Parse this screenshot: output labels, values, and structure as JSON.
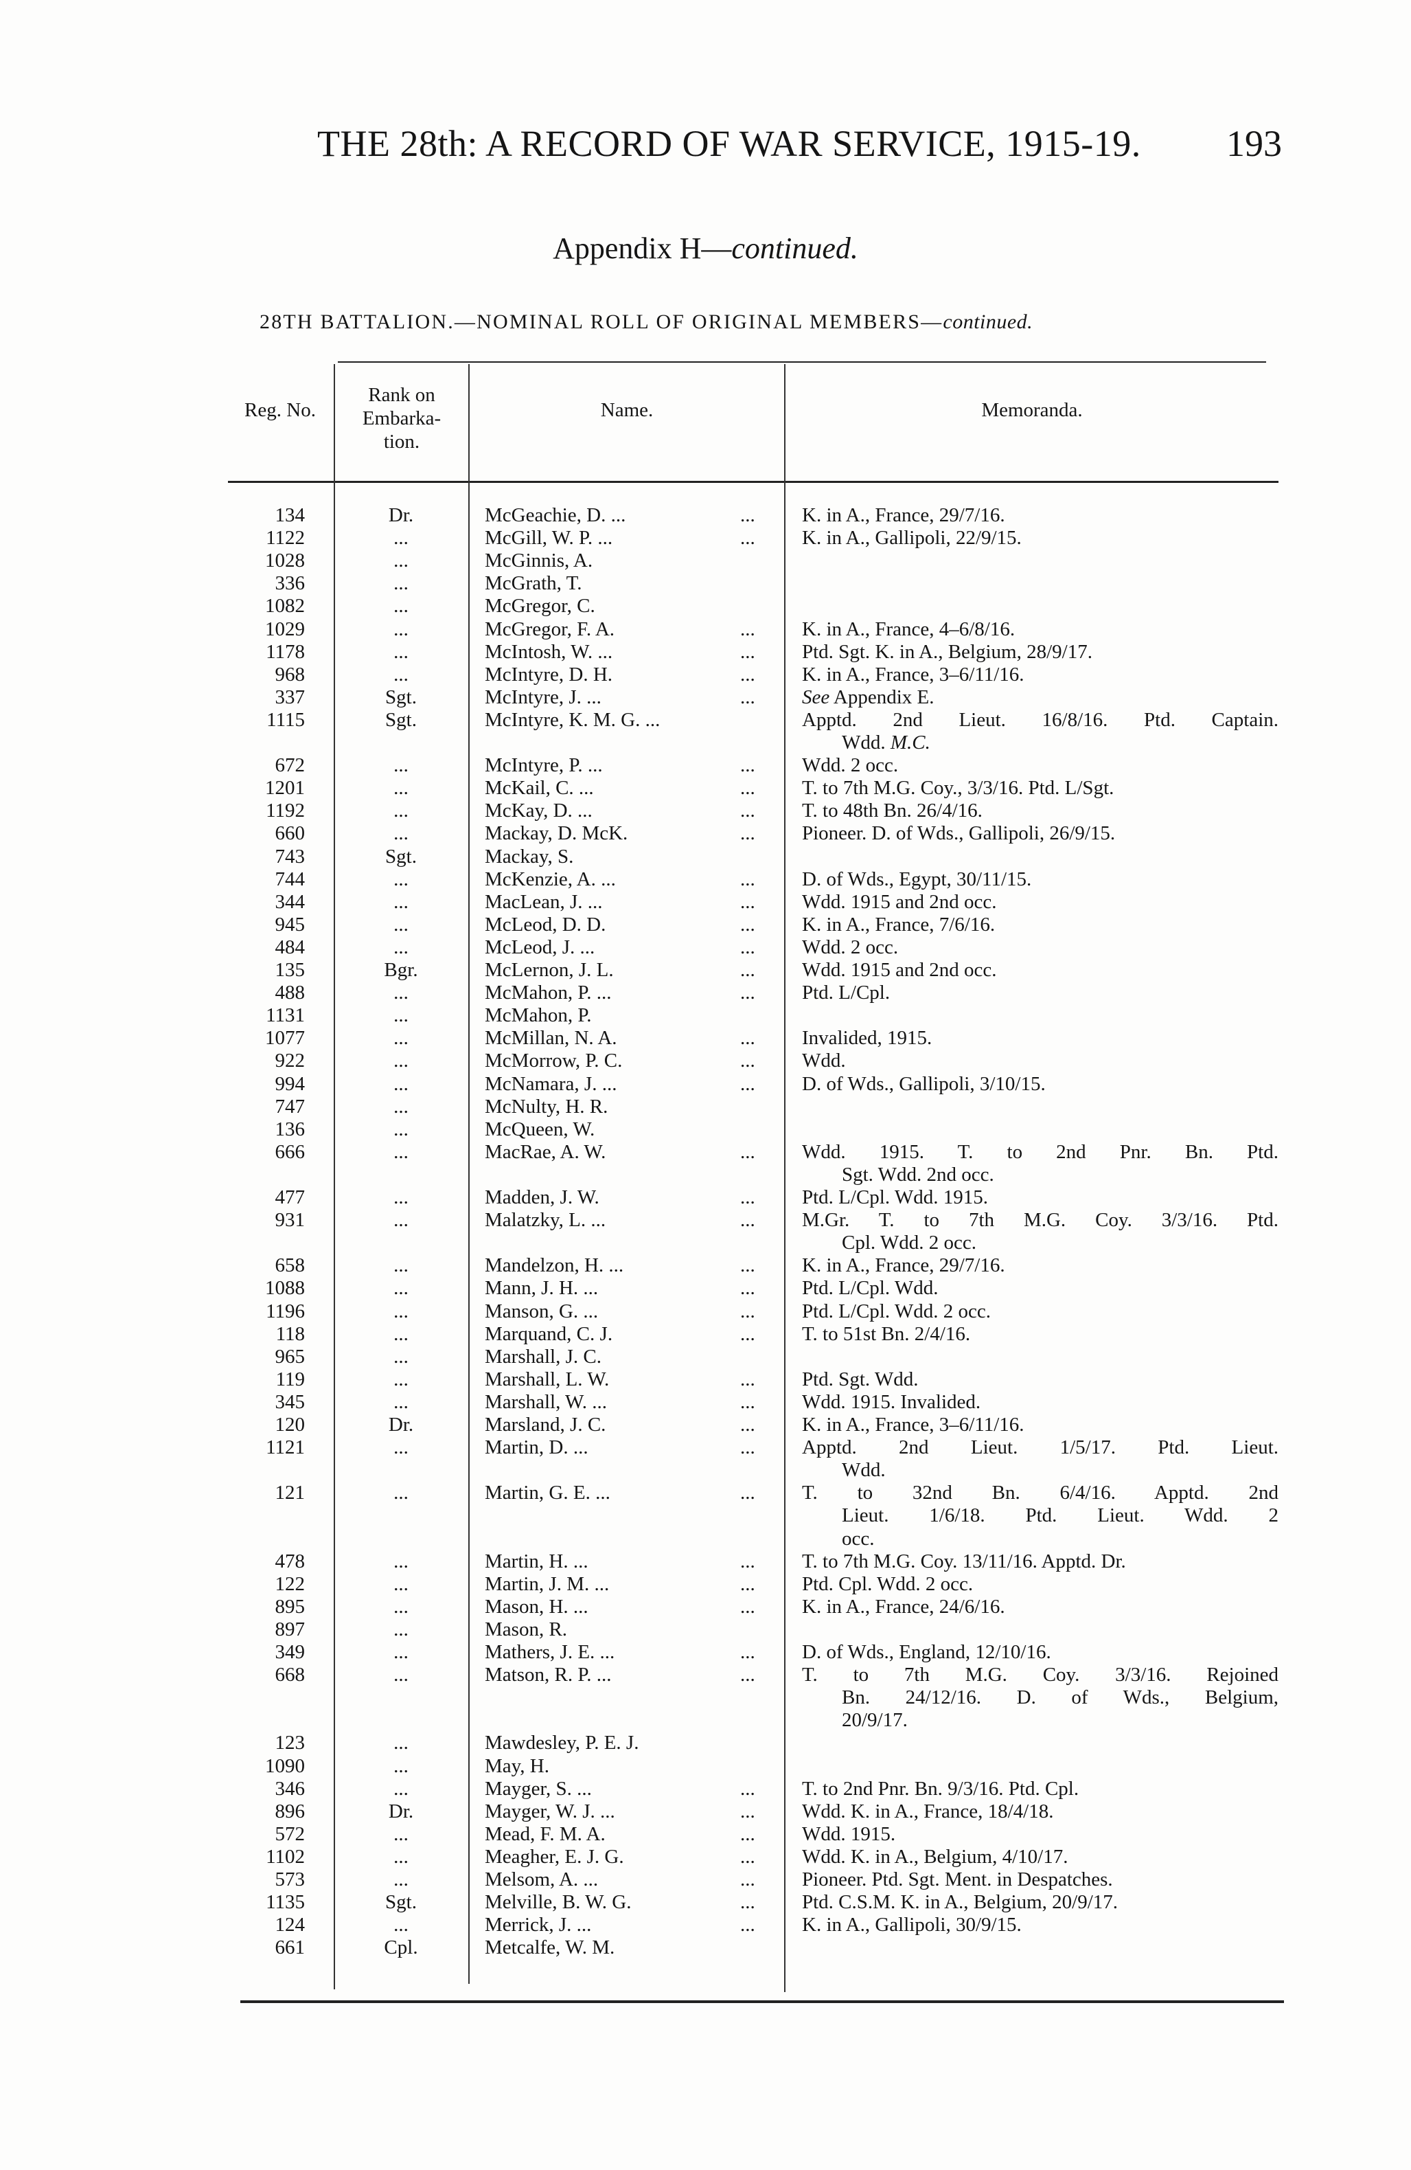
{
  "header": {
    "running_title": "THE 28th: A RECORD OF WAR SERVICE, 1915-19.",
    "page_number": "193"
  },
  "appendix_title": {
    "main": "Appendix H—",
    "italic": "continued."
  },
  "roll_title": {
    "main": "28TH BATTALION.—NOMINAL ROLL OF ORIGINAL MEMBERS—",
    "italic": "continued."
  },
  "table": {
    "columns": {
      "reg_no": "Reg. No.",
      "rank": [
        "Rank on",
        "Embarka-",
        "tion."
      ],
      "name": "Name.",
      "memoranda": "Memoranda."
    },
    "rows": [
      {
        "reg": "134",
        "rank": "Dr.",
        "name": "McGeachie, D. ...",
        "leader": "...",
        "memo": [
          "K. in A., France, 29/7/16."
        ]
      },
      {
        "reg": "1122",
        "rank": "...",
        "name": "McGill, W. P. ...",
        "leader": "...",
        "memo": [
          "K. in A., Gallipoli, 22/9/15."
        ]
      },
      {
        "reg": "1028",
        "rank": "...",
        "name": "McGinnis, A.",
        "leader": "",
        "memo": []
      },
      {
        "reg": "336",
        "rank": "...",
        "name": "McGrath, T.",
        "leader": "",
        "memo": []
      },
      {
        "reg": "1082",
        "rank": "...",
        "name": "McGregor, C.",
        "leader": "",
        "memo": []
      },
      {
        "reg": "1029",
        "rank": "...",
        "name": "McGregor, F. A.",
        "leader": "...",
        "memo": [
          "K. in A., France, 4–6/8/16."
        ]
      },
      {
        "reg": "1178",
        "rank": "...",
        "name": "McIntosh, W. ...",
        "leader": "...",
        "memo": [
          "Ptd. Sgt.  K. in A., Belgium, 28/9/17."
        ]
      },
      {
        "reg": "968",
        "rank": "...",
        "name": "McIntyre, D. H.",
        "leader": "...",
        "memo": [
          "K. in A., France, 3–6/11/16."
        ]
      },
      {
        "reg": "337",
        "rank": "Sgt.",
        "name": "McIntyre, J.  ...",
        "leader": "...",
        "memo": [
          [
            {
              "t": "See",
              "i": true
            },
            {
              "t": " Appendix E."
            }
          ]
        ]
      },
      {
        "reg": "1115",
        "rank": "Sgt.",
        "name": "McIntyre, K. M. G. ...",
        "leader": "",
        "memo": [
          "Apptd. 2nd Lieut. 16/8/16.  Ptd. Captain.",
          [
            {
              "t": "Wdd.  "
            },
            {
              "t": "M.C.",
              "i": true
            }
          ]
        ]
      },
      {
        "reg": "672",
        "rank": "...",
        "name": "McIntyre, P.  ...",
        "leader": "...",
        "memo": [
          "Wdd. 2 occ."
        ]
      },
      {
        "reg": "1201",
        "rank": "...",
        "name": "McKail, C.  ...",
        "leader": "...",
        "memo": [
          "T. to 7th M.G. Coy., 3/3/16.  Ptd. L/Sgt."
        ]
      },
      {
        "reg": "1192",
        "rank": "...",
        "name": "McKay, D.  ...",
        "leader": "...",
        "memo": [
          "T. to 48th Bn. 26/4/16."
        ]
      },
      {
        "reg": "660",
        "rank": "...",
        "name": "Mackay, D. McK.",
        "leader": "...",
        "memo": [
          "Pioneer.  D. of Wds., Gallipoli, 26/9/15."
        ]
      },
      {
        "reg": "743",
        "rank": "Sgt.",
        "name": "Mackay, S.",
        "leader": "",
        "memo": []
      },
      {
        "reg": "744",
        "rank": "...",
        "name": "McKenzie, A.  ...",
        "leader": "...",
        "memo": [
          "D. of Wds., Egypt, 30/11/15."
        ]
      },
      {
        "reg": "344",
        "rank": "...",
        "name": "MacLean, J.  ...",
        "leader": "...",
        "memo": [
          "Wdd. 1915 and 2nd occ."
        ]
      },
      {
        "reg": "945",
        "rank": "...",
        "name": "McLeod, D. D.",
        "leader": "...",
        "memo": [
          "K. in A., France, 7/6/16."
        ]
      },
      {
        "reg": "484",
        "rank": "...",
        "name": "McLeod, J.  ...",
        "leader": "...",
        "memo": [
          "Wdd. 2 occ."
        ]
      },
      {
        "reg": "135",
        "rank": "Bgr.",
        "name": "McLernon, J. L.",
        "leader": "...",
        "memo": [
          "Wdd. 1915 and 2nd occ."
        ]
      },
      {
        "reg": "488",
        "rank": "...",
        "name": "McMahon, P.  ...",
        "leader": "...",
        "memo": [
          "Ptd. L/Cpl."
        ]
      },
      {
        "reg": "1131",
        "rank": "...",
        "name": "McMahon, P.",
        "leader": "",
        "memo": []
      },
      {
        "reg": "1077",
        "rank": "...",
        "name": "McMillan, N. A.",
        "leader": "...",
        "memo": [
          "Invalided, 1915."
        ]
      },
      {
        "reg": "922",
        "rank": "...",
        "name": "McMorrow, P. C.",
        "leader": "...",
        "memo": [
          "Wdd."
        ]
      },
      {
        "reg": "994",
        "rank": "...",
        "name": "McNamara, J. ...",
        "leader": "...",
        "memo": [
          "D. of Wds., Gallipoli, 3/10/15."
        ]
      },
      {
        "reg": "747",
        "rank": "...",
        "name": "McNulty, H. R.",
        "leader": "",
        "memo": []
      },
      {
        "reg": "136",
        "rank": "...",
        "name": "McQueen,  W.",
        "leader": "",
        "memo": []
      },
      {
        "reg": "666",
        "rank": "...",
        "name": "MacRae, A. W.",
        "leader": "...",
        "memo": [
          "Wdd. 1915. T. to 2nd Pnr. Bn. Ptd.",
          "Sgt.  Wdd. 2nd occ."
        ]
      },
      {
        "reg": "477",
        "rank": "...",
        "name": "Madden, J. W.",
        "leader": "...",
        "memo": [
          "Ptd.  L/Cpl.  Wdd. 1915."
        ]
      },
      {
        "reg": "931",
        "rank": "...",
        "name": "Malatzky, L.  ...",
        "leader": "...",
        "memo": [
          "M.Gr. T. to 7th M.G. Coy. 3/3/16. Ptd.",
          "Cpl.  Wdd. 2 occ."
        ]
      },
      {
        "reg": "658",
        "rank": "...",
        "name": "Mandelzon, H. ...",
        "leader": "...",
        "memo": [
          "K. in A., France, 29/7/16."
        ]
      },
      {
        "reg": "1088",
        "rank": "...",
        "name": "Mann, J. H.  ...",
        "leader": "...",
        "memo": [
          "Ptd. L/Cpl.  Wdd."
        ]
      },
      {
        "reg": "1196",
        "rank": "...",
        "name": "Manson, G.  ...",
        "leader": "...",
        "memo": [
          "Ptd. L/Cpl.  Wdd. 2 occ."
        ]
      },
      {
        "reg": "118",
        "rank": "...",
        "name": "Marquand, C. J.",
        "leader": "...",
        "memo": [
          "T. to 51st Bn. 2/4/16."
        ]
      },
      {
        "reg": "965",
        "rank": "...",
        "name": "Marshall, J. C.",
        "leader": "",
        "memo": []
      },
      {
        "reg": "119",
        "rank": "...",
        "name": "Marshall, L. W.",
        "leader": "...",
        "memo": [
          "Ptd. Sgt.  Wdd."
        ]
      },
      {
        "reg": "345",
        "rank": "...",
        "name": "Marshall, W.  ...",
        "leader": "...",
        "memo": [
          "Wdd. 1915. Invalided."
        ]
      },
      {
        "reg": "120",
        "rank": "Dr.",
        "name": "Marsland, J. C.",
        "leader": "...",
        "memo": [
          "K. in A., France, 3–6/11/16."
        ]
      },
      {
        "reg": "1121",
        "rank": "...",
        "name": "Martin, D.  ...",
        "leader": "...",
        "memo": [
          "Apptd. 2nd Lieut. 1/5/17. Ptd. Lieut.",
          "Wdd."
        ]
      },
      {
        "reg": "121",
        "rank": "...",
        "name": "Martin, G. E. ...",
        "leader": "...",
        "memo": [
          "T. to 32nd Bn. 6/4/16. Apptd. 2nd",
          "Lieut. 1/6/18. Ptd. Lieut. Wdd. 2",
          "occ."
        ]
      },
      {
        "reg": "478",
        "rank": "...",
        "name": "Martin, H.  ...",
        "leader": "...",
        "memo": [
          "T. to 7th M.G. Coy. 13/11/16.  Apptd. Dr."
        ]
      },
      {
        "reg": "122",
        "rank": "...",
        "name": "Martin, J. M. ...",
        "leader": "...",
        "memo": [
          "Ptd. Cpl.  Wdd. 2 occ."
        ]
      },
      {
        "reg": "895",
        "rank": "...",
        "name": "Mason, H.  ...",
        "leader": "...",
        "memo": [
          "K. in A., France, 24/6/16."
        ]
      },
      {
        "reg": "897",
        "rank": "...",
        "name": "Mason, R.",
        "leader": "",
        "memo": []
      },
      {
        "reg": "349",
        "rank": "...",
        "name": "Mathers, J. E. ...",
        "leader": "...",
        "memo": [
          "D. of Wds., England, 12/10/16."
        ]
      },
      {
        "reg": "668",
        "rank": "...",
        "name": "Matson, R. P. ...",
        "leader": "...",
        "memo": [
          "T. to 7th M.G. Coy. 3/3/16. Rejoined",
          "Bn. 24/12/16. D. of Wds., Belgium,",
          "20/9/17."
        ]
      },
      {
        "reg": "123",
        "rank": "...",
        "name": "Mawdesley, P. E. J.",
        "leader": "",
        "memo": []
      },
      {
        "reg": "1090",
        "rank": "...",
        "name": "May, H.",
        "leader": "",
        "memo": []
      },
      {
        "reg": "346",
        "rank": "...",
        "name": "Mayger, S.  ...",
        "leader": "...",
        "memo": [
          "T. to 2nd Pnr. Bn. 9/3/16.  Ptd. Cpl."
        ]
      },
      {
        "reg": "896",
        "rank": "Dr.",
        "name": "Mayger, W. J. ...",
        "leader": "...",
        "memo": [
          "Wdd.  K. in A., France, 18/4/18."
        ]
      },
      {
        "reg": "572",
        "rank": "...",
        "name": "Mead, F. M. A.",
        "leader": "...",
        "memo": [
          "Wdd. 1915."
        ]
      },
      {
        "reg": "1102",
        "rank": "...",
        "name": "Meagher, E. J. G.",
        "leader": "...",
        "memo": [
          "Wdd.  K. in A., Belgium, 4/10/17."
        ]
      },
      {
        "reg": "573",
        "rank": "...",
        "name": "Melsom, A.  ...",
        "leader": "...",
        "memo": [
          "Pioneer.  Ptd. Sgt.  Ment. in Despatches."
        ]
      },
      {
        "reg": "1135",
        "rank": "Sgt.",
        "name": "Melville, B. W. G.",
        "leader": "...",
        "memo": [
          "Ptd. C.S.M.  K. in A., Belgium, 20/9/17."
        ]
      },
      {
        "reg": "124",
        "rank": "...",
        "name": "Merrick, J.  ...",
        "leader": "...",
        "memo": [
          "K. in A., Gallipoli, 30/9/15."
        ]
      },
      {
        "reg": "661",
        "rank": "Cpl.",
        "name": "Metcalfe, W. M.",
        "leader": "",
        "memo": []
      }
    ]
  }
}
